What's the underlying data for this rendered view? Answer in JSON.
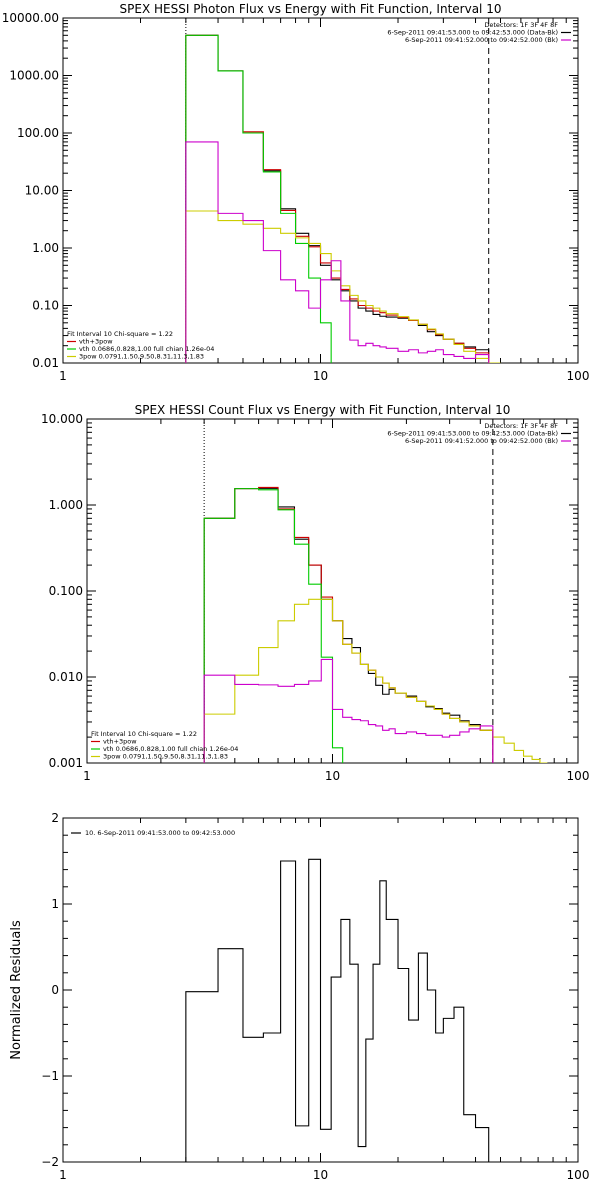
{
  "page": {
    "background": "#ffffff"
  },
  "chart_data": [
    {
      "id": "photon",
      "type": "line",
      "step": true,
      "title": "SPEX HESSI Photon Flux vs Energy with Fit Function, Interval 10",
      "xlabel": "",
      "ylabel": "",
      "xscale": "log",
      "yscale": "log",
      "xlim": [
        1,
        100
      ],
      "ylim": [
        0.01,
        10000
      ],
      "xticks": [
        {
          "v": 1,
          "label": "1"
        },
        {
          "v": 10,
          "label": "10"
        },
        {
          "v": 100,
          "label": "100"
        }
      ],
      "yticks": [
        {
          "v": 0.01,
          "label": "0.01"
        },
        {
          "v": 0.1,
          "label": "0.10"
        },
        {
          "v": 1,
          "label": "1.00"
        },
        {
          "v": 10,
          "label": "10.00"
        },
        {
          "v": 100,
          "label": "100.00"
        },
        {
          "v": 1000,
          "label": "1000.00"
        },
        {
          "v": 10000,
          "label": "10000.00"
        }
      ],
      "vlines": [
        {
          "x": 3,
          "style": "dotted"
        },
        {
          "x": 45,
          "style": "dashed"
        }
      ],
      "legend_top_right": [
        {
          "text": "Detectors: 1F 3F 4F 8F",
          "color": ""
        },
        {
          "text": "6-Sep-2011 09:41:53.000 to 09:42:53.000 (Data-Bk)",
          "color": "#000000"
        },
        {
          "text": "6-Sep-2011 09:41:52.000 to 09:42:52.000 (Bk)",
          "color": "#cc00cc"
        }
      ],
      "legend_bottom_left": [
        {
          "text": "Fit Interval 10   Chi-square = 1.22",
          "color": ""
        },
        {
          "text": "vth+3pow",
          "color": "#cc0000"
        },
        {
          "text": "vth 0.0686,0.828,1.00  full chian 1.26e-04",
          "color": "#00cc00"
        },
        {
          "text": "3pow 0.0791,1.50,9.50,8.31,11.3,1.83",
          "color": "#cccc00"
        }
      ],
      "series": [
        {
          "name": "Data-Bk",
          "color": "#000000",
          "edges": [
            3,
            4,
            5,
            6,
            7,
            8,
            9,
            10,
            11,
            12,
            13,
            14,
            15,
            16,
            17,
            18,
            20,
            22,
            24,
            26,
            28,
            30,
            33,
            36,
            40,
            45
          ],
          "values": [
            5000,
            1200,
            100,
            22,
            4.8,
            1.8,
            1.1,
            0.5,
            0.28,
            0.18,
            0.12,
            0.09,
            0.08,
            0.07,
            0.065,
            0.063,
            0.06,
            0.055,
            0.045,
            0.035,
            0.03,
            0.026,
            0.022,
            0.019,
            0.017
          ]
        },
        {
          "name": "vth+3pow",
          "color": "#cc0000",
          "edges": [
            3,
            4,
            5,
            6,
            7,
            8,
            9,
            10,
            11,
            12,
            13,
            14,
            15,
            16,
            17,
            18,
            20,
            22,
            24,
            26,
            28,
            30,
            33,
            36,
            40,
            45
          ],
          "values": [
            5000,
            1200,
            105,
            23,
            4.5,
            1.6,
            1.05,
            0.55,
            0.3,
            0.19,
            0.13,
            0.1,
            0.09,
            0.08,
            0.075,
            0.068,
            0.062,
            0.055,
            0.047,
            0.038,
            0.031,
            0.026,
            0.022,
            0.018,
            0.015
          ]
        },
        {
          "name": "vth",
          "color": "#00cc00",
          "edges": [
            3,
            4,
            5,
            6,
            7,
            8,
            9,
            10,
            11
          ],
          "values": [
            5000,
            1200,
            100,
            21,
            4,
            1.2,
            0.3,
            0.05
          ]
        },
        {
          "name": "3pow",
          "color": "#cccc00",
          "edges": [
            3,
            4,
            5,
            6,
            7,
            8,
            9,
            10,
            11,
            12,
            13,
            14,
            15,
            16,
            17,
            18,
            20,
            22,
            24,
            26,
            28,
            30,
            33,
            36,
            40,
            45,
            50
          ],
          "values": [
            4.4,
            3,
            2.6,
            2.2,
            1.8,
            1.5,
            1.2,
            0.8,
            0.4,
            0.22,
            0.15,
            0.12,
            0.1,
            0.09,
            0.08,
            0.072,
            0.064,
            0.056,
            0.047,
            0.039,
            0.032,
            0.026,
            0.021,
            0.016,
            0.012,
            0.009
          ]
        },
        {
          "name": "Bk",
          "color": "#cc00cc",
          "edges": [
            3,
            4,
            5,
            6,
            7,
            8,
            9,
            10,
            11,
            12,
            13,
            14,
            15,
            16,
            17,
            18,
            20,
            22,
            24,
            26,
            28,
            30,
            33,
            36,
            40,
            45
          ],
          "values": [
            70,
            4,
            3,
            0.9,
            0.28,
            0.18,
            0.09,
            0.28,
            0.6,
            0.12,
            0.025,
            0.02,
            0.022,
            0.02,
            0.019,
            0.018,
            0.016,
            0.017,
            0.015,
            0.016,
            0.017,
            0.014,
            0.013,
            0.012,
            0.014
          ]
        }
      ]
    },
    {
      "id": "count",
      "type": "line",
      "step": true,
      "title": "SPEX HESSI Count Flux vs Energy with Fit Function, Interval 10",
      "xlabel": "",
      "ylabel": "",
      "xscale": "log",
      "yscale": "log",
      "xlim": [
        1,
        100
      ],
      "ylim": [
        0.001,
        10
      ],
      "xticks": [
        {
          "v": 1,
          "label": "1"
        },
        {
          "v": 10,
          "label": "10"
        },
        {
          "v": 100,
          "label": "100"
        }
      ],
      "yticks": [
        {
          "v": 0.001,
          "label": "0.001"
        },
        {
          "v": 0.01,
          "label": "0.010"
        },
        {
          "v": 0.1,
          "label": "0.100"
        },
        {
          "v": 1,
          "label": "1.000"
        },
        {
          "v": 10,
          "label": "10.000"
        }
      ],
      "vlines": [
        {
          "x": 3,
          "style": "dotted"
        },
        {
          "x": 45,
          "style": "dashed"
        }
      ],
      "legend_top_right": [
        {
          "text": "Detectors: 1F 3F 4F 8F",
          "color": ""
        },
        {
          "text": "6-Sep-2011 09:41:53.000 to 09:42:53.000 (Data-Bk)",
          "color": "#000000"
        },
        {
          "text": "6-Sep-2011 09:41:52.000 to 09:42:52.000 (Bk)",
          "color": "#cc00cc"
        }
      ],
      "legend_bottom_left": [
        {
          "text": "Fit Interval 10   Chi-square = 1.22",
          "color": ""
        },
        {
          "text": "vth+3pow",
          "color": "#cc0000"
        },
        {
          "text": "vth 0.0686,0.828,1.00  full chian 1.26e-04",
          "color": "#00cc00"
        },
        {
          "text": "3pow 0.0791,1.50,9.50,8.31,11.3,1.83",
          "color": "#cccc00"
        }
      ],
      "series": [
        {
          "name": "Data-Bk",
          "color": "#000000",
          "edges": [
            3,
            4,
            5,
            6,
            7,
            8,
            9,
            10,
            11,
            12,
            13,
            14,
            15,
            16,
            17,
            18,
            20,
            22,
            24,
            26,
            28,
            30,
            33,
            36,
            40,
            45
          ],
          "values": [
            0.7,
            1.55,
            1.55,
            0.95,
            0.4,
            0.2,
            0.08,
            0.045,
            0.028,
            0.022,
            0.014,
            0.011,
            0.008,
            0.0063,
            0.0072,
            0.0065,
            0.006,
            0.0052,
            0.0045,
            0.0043,
            0.0038,
            0.0036,
            0.0031,
            0.0028,
            0.0024
          ]
        },
        {
          "name": "vth+3pow",
          "color": "#cc0000",
          "edges": [
            3,
            4,
            5,
            6,
            7,
            8,
            9,
            10,
            11,
            12,
            13,
            14,
            15,
            16,
            17,
            18,
            20,
            22,
            24,
            26,
            28,
            30,
            33,
            36,
            40,
            45
          ],
          "values": [
            0.7,
            1.55,
            1.6,
            0.9,
            0.42,
            0.2,
            0.085,
            0.045,
            0.024,
            0.019,
            0.014,
            0.012,
            0.01,
            0.0085,
            0.0075,
            0.0065,
            0.0058,
            0.0052,
            0.0046,
            0.0042,
            0.0037,
            0.0033,
            0.003,
            0.0027,
            0.0024
          ]
        },
        {
          "name": "vth",
          "color": "#00cc00",
          "edges": [
            3,
            4,
            5,
            6,
            7,
            8,
            9,
            10,
            11
          ],
          "values": [
            0.7,
            1.55,
            1.5,
            0.88,
            0.35,
            0.12,
            0.017,
            0.0015
          ]
        },
        {
          "name": "3pow",
          "color": "#cccc00",
          "edges": [
            3,
            4,
            5,
            6,
            7,
            8,
            9,
            10,
            11,
            12,
            13,
            14,
            15,
            16,
            17,
            18,
            20,
            22,
            24,
            26,
            28,
            30,
            33,
            36,
            40,
            45,
            50,
            55,
            60,
            65,
            70,
            75
          ],
          "values": [
            0.0037,
            0.0105,
            0.022,
            0.045,
            0.07,
            0.08,
            0.08,
            0.045,
            0.024,
            0.019,
            0.014,
            0.012,
            0.01,
            0.0085,
            0.0075,
            0.0065,
            0.0058,
            0.0052,
            0.0046,
            0.0042,
            0.0037,
            0.0033,
            0.003,
            0.0027,
            0.0024,
            0.002,
            0.0017,
            0.0014,
            0.0012,
            0.0011,
            0.001
          ]
        },
        {
          "name": "Bk",
          "color": "#cc00cc",
          "edges": [
            3,
            4,
            5,
            6,
            7,
            8,
            9,
            10,
            11,
            12,
            13,
            14,
            15,
            16,
            17,
            18,
            20,
            22,
            24,
            26,
            28,
            30,
            33,
            36,
            40,
            45
          ],
          "values": [
            0.0105,
            0.0082,
            0.0081,
            0.0078,
            0.0082,
            0.009,
            0.016,
            0.0042,
            0.0034,
            0.0032,
            0.0031,
            0.0028,
            0.0027,
            0.0024,
            0.0025,
            0.0022,
            0.0023,
            0.0022,
            0.0021,
            0.0021,
            0.002,
            0.0021,
            0.0023,
            0.0025,
            0.0027
          ]
        }
      ]
    },
    {
      "id": "residuals",
      "type": "line",
      "step": true,
      "title": "",
      "xlabel": "",
      "ylabel": "Normalized Residuals",
      "xscale": "log",
      "yscale": "linear",
      "xlim": [
        1,
        100
      ],
      "ylim": [
        -2,
        2
      ],
      "xticks": [
        {
          "v": 1,
          "label": "1"
        },
        {
          "v": 10,
          "label": "10"
        },
        {
          "v": 100,
          "label": "100"
        }
      ],
      "yticks": [
        {
          "v": -2,
          "label": "−2"
        },
        {
          "v": -1,
          "label": "−1"
        },
        {
          "v": 0,
          "label": "0"
        },
        {
          "v": 1,
          "label": "1"
        },
        {
          "v": 2,
          "label": "2"
        }
      ],
      "legend_top_left": [
        {
          "text": "10.  6-Sep-2011 09:41:53.000 to 09:42:53.000",
          "color": "#000000"
        }
      ],
      "series": [
        {
          "name": "",
          "color": "#000000",
          "edges": [
            3,
            4,
            5,
            6,
            7,
            8,
            9,
            10,
            11,
            12,
            13,
            14,
            15,
            16,
            17,
            18,
            20,
            22,
            24,
            26,
            28,
            30,
            33,
            36,
            40,
            45
          ],
          "values": [
            -0.02,
            0.48,
            -0.55,
            -0.5,
            1.5,
            -1.58,
            1.52,
            -1.62,
            0.15,
            0.82,
            0.3,
            -1.82,
            -0.57,
            0.3,
            1.27,
            0.82,
            0.25,
            -0.35,
            0.43,
            0,
            -0.5,
            -0.33,
            -0.2,
            -1.45,
            -1.6
          ]
        }
      ]
    }
  ]
}
